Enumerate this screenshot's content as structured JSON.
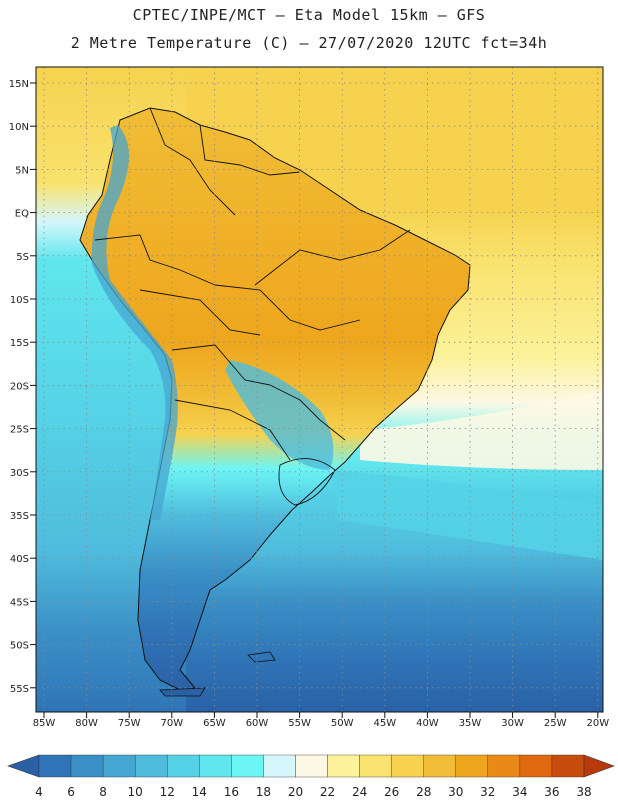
{
  "header": {
    "line1": "CPTEC/INPE/MCT –  Eta Model 15km – GFS",
    "line2": "2 Metre Temperature (C) – 27/07/2020 12UTC fct=34h"
  },
  "axes": {
    "lat_labels": [
      "15N",
      "10N",
      "5N",
      "EQ",
      "5S",
      "10S",
      "15S",
      "20S",
      "25S",
      "30S",
      "35S",
      "40S",
      "45S",
      "50S",
      "55S"
    ],
    "lon_labels": [
      "85W",
      "80W",
      "75W",
      "70W",
      "65W",
      "60W",
      "55W",
      "50W",
      "45W",
      "40W",
      "35W",
      "30W",
      "25W",
      "20W"
    ]
  },
  "colorbar": {
    "labels": [
      "4",
      "6",
      "8",
      "10",
      "12",
      "14",
      "16",
      "18",
      "20",
      "22",
      "24",
      "26",
      "28",
      "30",
      "32",
      "34",
      "36",
      "38"
    ],
    "colors": [
      "#2a61a6",
      "#2f74b6",
      "#3a8fc6",
      "#46a6d2",
      "#4fbcdd",
      "#55d2e6",
      "#5fe6ee",
      "#6cf5f5",
      "#d4f7fb",
      "#fdf8e4",
      "#fcf29a",
      "#f9e26d",
      "#f6d24f",
      "#f1bd36",
      "#eea61d",
      "#e98a16",
      "#df6a10",
      "#c84c0c",
      "#b8390a"
    ]
  },
  "map_colors": {
    "ocean_trop": "#f6d24f",
    "ocean_mid": "#5fe6ee",
    "ocean_south": "#3a8fc6",
    "land_amazon": "#f1bd36",
    "land_andes": "#46a6d2",
    "land_patagonia": "#2f74b6"
  }
}
